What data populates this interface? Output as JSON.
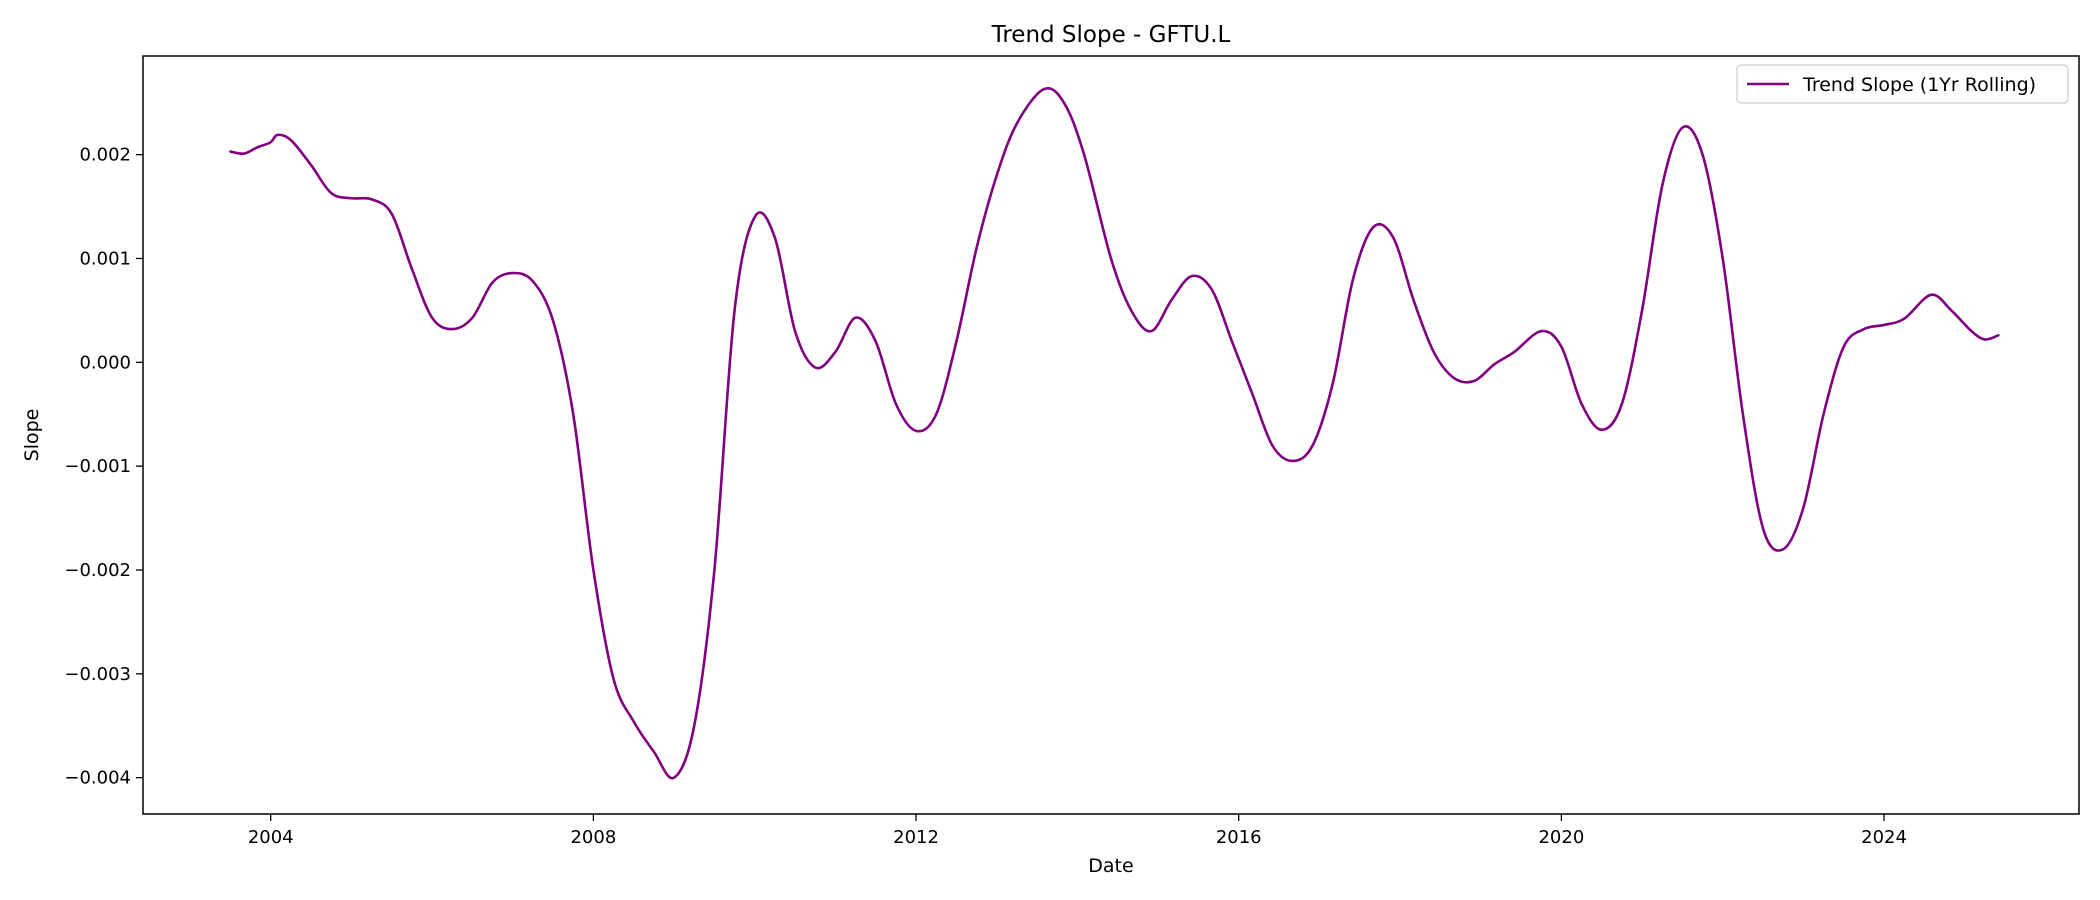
{
  "chart_data": {
    "type": "line",
    "title": "Trend Slope - GFTU.L",
    "xlabel": "Date",
    "ylabel": "Slope",
    "x_ticks": [
      "2004",
      "2008",
      "2012",
      "2016",
      "2020",
      "2024"
    ],
    "y_ticks": [
      "0.002",
      "0.001",
      "0.000",
      "−0.001",
      "−0.002",
      "−0.003",
      "−0.004"
    ],
    "x_range": [
      "2002-06-01",
      "2026-06-01"
    ],
    "y_range": [
      -0.00435,
      0.00295
    ],
    "grid": false,
    "legend_position": "top-right",
    "colors": {
      "line": "#800080",
      "axes": "#000000",
      "background": "#ffffff"
    },
    "series": [
      {
        "name": "Trend Slope (1Yr Rolling)",
        "points": [
          [
            "2003-07-01",
            0.00203
          ],
          [
            "2003-09-01",
            0.00201
          ],
          [
            "2003-11-01",
            0.00207
          ],
          [
            "2004-01-01",
            0.00212
          ],
          [
            "2004-02-01",
            0.00219
          ],
          [
            "2004-04-01",
            0.00214
          ],
          [
            "2004-07-01",
            0.0019
          ],
          [
            "2004-10-01",
            0.00163
          ],
          [
            "2005-01-01",
            0.00158
          ],
          [
            "2005-04-01",
            0.00157
          ],
          [
            "2005-07-01",
            0.00143
          ],
          [
            "2005-10-01",
            0.0009
          ],
          [
            "2006-01-01",
            0.00043
          ],
          [
            "2006-04-01",
            0.00032
          ],
          [
            "2006-07-01",
            0.00043
          ],
          [
            "2006-10-01",
            0.00077
          ],
          [
            "2007-01-01",
            0.00086
          ],
          [
            "2007-04-01",
            0.00078
          ],
          [
            "2007-07-01",
            0.0004
          ],
          [
            "2007-10-01",
            -0.0005
          ],
          [
            "2008-01-01",
            -0.002
          ],
          [
            "2008-04-01",
            -0.00305
          ],
          [
            "2008-07-01",
            -0.00346
          ],
          [
            "2008-10-01",
            -0.00375
          ],
          [
            "2009-01-01",
            -0.004
          ],
          [
            "2009-04-01",
            -0.0035
          ],
          [
            "2009-07-01",
            -0.002
          ],
          [
            "2009-10-01",
            0.0005
          ],
          [
            "2010-01-01",
            0.0014
          ],
          [
            "2010-04-01",
            0.0012
          ],
          [
            "2010-07-01",
            0.0003
          ],
          [
            "2010-10-01",
            -5e-05
          ],
          [
            "2011-01-01",
            0.0001
          ],
          [
            "2011-04-01",
            0.00043
          ],
          [
            "2011-07-01",
            0.0002
          ],
          [
            "2011-10-01",
            -0.0004
          ],
          [
            "2012-01-01",
            -0.00066
          ],
          [
            "2012-04-01",
            -0.0005
          ],
          [
            "2012-07-01",
            0.0002
          ],
          [
            "2012-10-01",
            0.0011
          ],
          [
            "2013-01-01",
            0.0018
          ],
          [
            "2013-04-01",
            0.0023
          ],
          [
            "2013-08-01",
            0.00263
          ],
          [
            "2013-11-01",
            0.0025
          ],
          [
            "2014-02-01",
            0.002
          ],
          [
            "2014-06-01",
            0.001
          ],
          [
            "2014-09-01",
            0.0005
          ],
          [
            "2014-12-01",
            0.0003
          ],
          [
            "2015-03-01",
            0.0006
          ],
          [
            "2015-06-01",
            0.00083
          ],
          [
            "2015-09-01",
            0.0007
          ],
          [
            "2015-12-01",
            0.0002
          ],
          [
            "2016-03-01",
            -0.0003
          ],
          [
            "2016-06-01",
            -0.0008
          ],
          [
            "2016-09-01",
            -0.00095
          ],
          [
            "2016-12-01",
            -0.0008
          ],
          [
            "2017-03-01",
            -0.0002
          ],
          [
            "2017-06-01",
            0.0008
          ],
          [
            "2017-09-01",
            0.0013
          ],
          [
            "2017-12-01",
            0.0012
          ],
          [
            "2018-03-01",
            0.0006
          ],
          [
            "2018-06-01",
            0.0001
          ],
          [
            "2018-09-01",
            -0.00015
          ],
          [
            "2018-12-01",
            -0.00018
          ],
          [
            "2019-03-01",
            -2e-05
          ],
          [
            "2019-06-01",
            0.0001
          ],
          [
            "2019-10-01",
            0.0003
          ],
          [
            "2020-01-01",
            0.00015
          ],
          [
            "2020-04-01",
            -0.0004
          ],
          [
            "2020-07-01",
            -0.00065
          ],
          [
            "2020-10-01",
            -0.0004
          ],
          [
            "2021-01-01",
            0.0005
          ],
          [
            "2021-04-01",
            0.0017
          ],
          [
            "2021-07-01",
            0.00226
          ],
          [
            "2021-10-01",
            0.002
          ],
          [
            "2022-01-01",
            0.001
          ],
          [
            "2022-04-01",
            -0.0005
          ],
          [
            "2022-07-01",
            -0.0016
          ],
          [
            "2022-10-01",
            -0.0018
          ],
          [
            "2023-01-01",
            -0.0014
          ],
          [
            "2023-04-01",
            -0.0005
          ],
          [
            "2023-07-01",
            0.00015
          ],
          [
            "2023-10-01",
            0.00032
          ],
          [
            "2024-01-01",
            0.00036
          ],
          [
            "2024-04-01",
            0.00042
          ],
          [
            "2024-08-01",
            0.00065
          ],
          [
            "2024-11-01",
            0.0005
          ],
          [
            "2025-02-01",
            0.0003
          ],
          [
            "2025-04-01",
            0.00022
          ],
          [
            "2025-06-01",
            0.00026
          ]
        ]
      }
    ]
  }
}
